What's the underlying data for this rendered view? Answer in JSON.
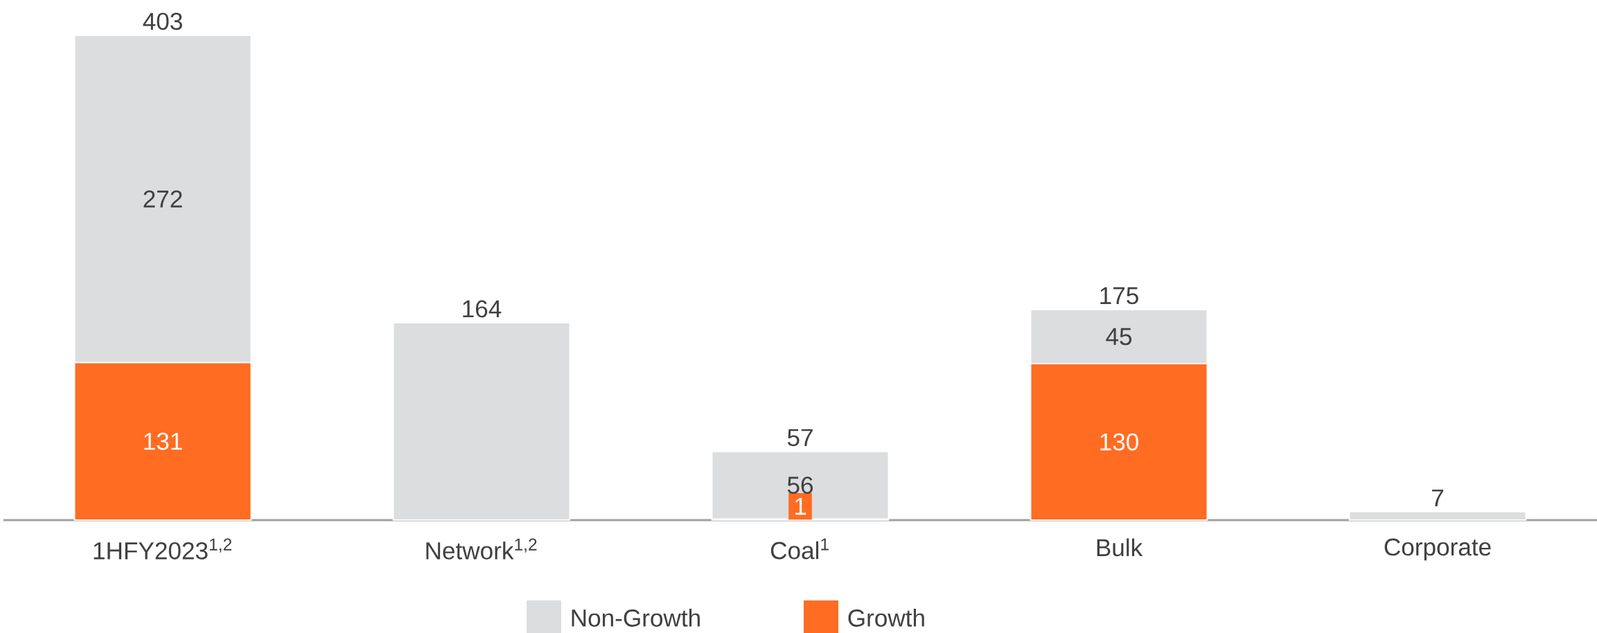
{
  "chart_data": {
    "type": "bar",
    "stacked": true,
    "legend": "bottom",
    "categories": [
      "1HFY2023$^{1,2}$",
      "Network$^{1,2}$",
      "Coal$^{1}$",
      "Bulk",
      "Corporate"
    ],
    "series": [
      {
        "name": "Growth",
        "color": "#ff6c22",
        "values": [
          131,
          null,
          1,
          130,
          null
        ],
        "value_labels": [
          "131",
          null,
          "1",
          "130",
          null
        ]
      },
      {
        "name": "Non-Growth",
        "color": "#dcdddf",
        "values": [
          272,
          164,
          56,
          45,
          7
        ],
        "value_labels": [
          "272",
          null,
          "56",
          "45",
          null
        ]
      }
    ],
    "totals": [
      "403",
      "164",
      "57",
      "175",
      "7"
    ]
  }
}
